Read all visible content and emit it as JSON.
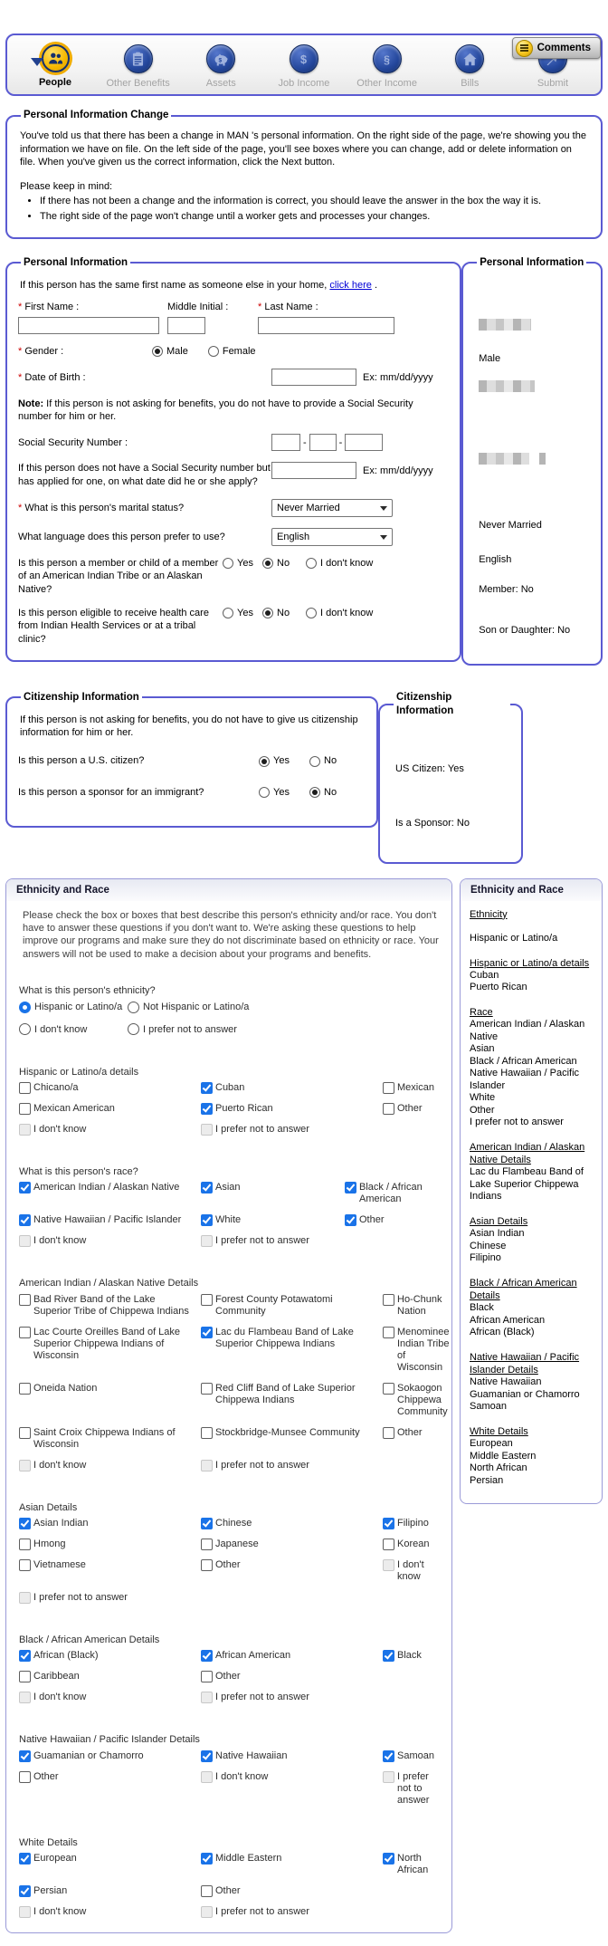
{
  "colors": {
    "fieldset_border": "#5a5ad2",
    "active_tab_yellow": "#f6b800",
    "nav_icon_blue": "#24479c",
    "checkbox_checked_blue": "#1a73e8",
    "link_blue": "#0000d6",
    "required_marker_red": "#cc0000"
  },
  "comments_button": {
    "label": "Comments"
  },
  "nav": {
    "items": [
      {
        "id": "people",
        "label": "People",
        "icon": "people-icon",
        "active": true
      },
      {
        "id": "other-benefits",
        "label": "Other Benefits",
        "icon": "clipboard-icon",
        "active": false
      },
      {
        "id": "assets",
        "label": "Assets",
        "icon": "piggy-bank-icon",
        "active": false
      },
      {
        "id": "job-income",
        "label": "Job Income",
        "icon": "dollar-coin-icon",
        "active": false
      },
      {
        "id": "other-income",
        "label": "Other Income",
        "icon": "section-coin-icon",
        "active": false
      },
      {
        "id": "bills",
        "label": "Bills",
        "icon": "house-icon",
        "active": false
      },
      {
        "id": "submit",
        "label": "Submit",
        "icon": "arrow-up-right-icon",
        "active": false
      }
    ]
  },
  "change_notice": {
    "title": "Personal Information Change",
    "intro": "You've told us that there has been a change in MAN 's personal information. On the right side of the page, we're showing you the information we have on file. On the left side of the page, you'll see boxes where you can change, add or delete information on file. When you've given us the correct information, click the Next button.",
    "keep_in_mind": "Please keep in mind:",
    "bullets": [
      "If there has not been a change and the information is correct, you should leave the answer in the box the way it is.",
      "The right side of the page won't change until a worker gets and processes your changes."
    ]
  },
  "personal_form": {
    "title": "Personal Information",
    "same_name": {
      "before": "If this person has the same first name as someone else in your home,",
      "link": "click here",
      "after": "."
    },
    "first_name": {
      "label": "First Name :",
      "required": true,
      "value": ""
    },
    "middle_initial": {
      "label": "Middle Initial :",
      "required": false,
      "value": ""
    },
    "last_name": {
      "label": "Last Name :",
      "required": true,
      "value": ""
    },
    "gender": {
      "label": "Gender :",
      "required": true,
      "options": [
        {
          "label": "Male",
          "selected": true
        },
        {
          "label": "Female",
          "selected": false
        }
      ]
    },
    "dob": {
      "label": "Date of Birth :",
      "required": true,
      "value": "",
      "hint": "Ex: mm/dd/yyyy"
    },
    "ssn_note_bold": "Note:",
    "ssn_note": "If this person is not asking for benefits, you do not have to provide a Social Security number for him or her.",
    "ssn": {
      "label": "Social Security Number :",
      "separator": "-",
      "values": [
        "",
        "",
        ""
      ]
    },
    "ssn_applied": {
      "label": "If this person does not have a Social Security number but has applied for one, on what date did he or she apply?",
      "value": "",
      "hint": "Ex: mm/dd/yyyy"
    },
    "marital": {
      "label": "What is this person's marital status?",
      "required": true,
      "value": "Never Married"
    },
    "language": {
      "label": "What language does this person prefer to use?",
      "value": "English"
    },
    "tribe_member": {
      "label": "Is this person a member or child of a member of an American Indian Tribe or an Alaskan Native?",
      "options": [
        {
          "label": "Yes",
          "selected": false
        },
        {
          "label": "No",
          "selected": true
        },
        {
          "label": "I don't know",
          "selected": false
        }
      ]
    },
    "indian_health": {
      "label": "Is this person eligible to receive health care from Indian Health Services or at a tribal clinic?",
      "options": [
        {
          "label": "Yes",
          "selected": false
        },
        {
          "label": "No",
          "selected": true
        },
        {
          "label": "I don't know",
          "selected": false
        }
      ]
    }
  },
  "personal_summary": {
    "title": "Personal Information",
    "items": [
      {
        "type": "redacted",
        "style": "r-name"
      },
      {
        "type": "text",
        "value": "Male"
      },
      {
        "type": "redacted",
        "style": "r-dob"
      },
      {
        "type": "redacted-ssn"
      },
      {
        "type": "text",
        "value": "Never Married"
      },
      {
        "type": "text",
        "value": "English"
      },
      {
        "type": "text",
        "value": "Member: No"
      },
      {
        "type": "text",
        "value": "Son or Daughter: No"
      }
    ]
  },
  "citizenship_form": {
    "title": "Citizenship Information",
    "intro": "If this person is not asking for benefits, you do not have to give us citizenship information for him or her.",
    "questions": [
      {
        "label": "Is this person a U.S. citizen?",
        "options": [
          {
            "label": "Yes",
            "selected": true
          },
          {
            "label": "No",
            "selected": false
          }
        ]
      },
      {
        "label": "Is this person a sponsor for an immigrant?",
        "options": [
          {
            "label": "Yes",
            "selected": false
          },
          {
            "label": "No",
            "selected": true
          }
        ]
      }
    ]
  },
  "citizenship_summary": {
    "title": "Citizenship Information",
    "items": [
      "US Citizen: Yes",
      "Is a Sponsor: No"
    ]
  },
  "ethnicity_form": {
    "title": "Ethnicity and Race",
    "intro": "Please check the box or boxes that best describe this person's ethnicity and/or race. You don't have to answer these questions if you don't want to. We're asking these questions to help improve our programs and make sure they do not discriminate based on ethnicity or race. Your answers will not be used to make a decision about your programs and benefits.",
    "ethnicity_question": {
      "label": "What is this person's ethnicity?",
      "options": [
        {
          "label": "Hispanic or Latino/a",
          "selected": true
        },
        {
          "label": "Not Hispanic or Latino/a",
          "selected": false
        },
        {
          "label": "I don't know",
          "selected": false
        },
        {
          "label": "I prefer not to answer",
          "selected": false
        }
      ]
    },
    "groups": [
      {
        "heading": "Hispanic or Latino/a details",
        "grid": "a",
        "items": [
          {
            "label": "Chicano/a",
            "checked": false
          },
          {
            "label": "Cuban",
            "checked": true
          },
          {
            "label": "Mexican",
            "checked": false
          },
          {
            "label": "Mexican American",
            "checked": false
          },
          {
            "label": "Puerto Rican",
            "checked": true
          },
          {
            "label": "Other",
            "checked": false
          },
          {
            "label": "I don't know",
            "checked": false,
            "disabled": true
          },
          {
            "label": "I prefer not to answer",
            "checked": false,
            "disabled": true
          }
        ]
      },
      {
        "heading": "What is this person's race?",
        "grid": "b",
        "items": [
          {
            "label": "American Indian / Alaskan Native",
            "checked": true
          },
          {
            "label": "Asian",
            "checked": true
          },
          {
            "label": "Black / African American",
            "checked": true
          },
          {
            "label": "Native Hawaiian / Pacific Islander",
            "checked": true
          },
          {
            "label": "White",
            "checked": true
          },
          {
            "label": "Other",
            "checked": true
          },
          {
            "label": "I don't know",
            "checked": false,
            "disabled": true
          },
          {
            "label": "I prefer not to answer",
            "checked": false,
            "disabled": true
          }
        ]
      },
      {
        "heading": "American Indian / Alaskan Native Details",
        "grid": "a",
        "items": [
          {
            "label": "Bad River Band of the Lake Superior Tribe of Chippewa Indians",
            "checked": false
          },
          {
            "label": "Forest County Potawatomi Community",
            "checked": false
          },
          {
            "label": "Ho-Chunk Nation",
            "checked": false
          },
          {
            "label": "Lac Courte Oreilles Band of Lake Superior Chippewa Indians of Wisconsin",
            "checked": false
          },
          {
            "label": "Lac du Flambeau Band of Lake Superior Chippewa Indians",
            "checked": true
          },
          {
            "label": "Menominee Indian Tribe of Wisconsin",
            "checked": false
          },
          {
            "label": "Oneida Nation",
            "checked": false
          },
          {
            "label": "Red Cliff Band of Lake Superior Chippewa Indians",
            "checked": false
          },
          {
            "label": "Sokaogon Chippewa Community",
            "checked": false
          },
          {
            "label": "Saint Croix Chippewa Indians of Wisconsin",
            "checked": false
          },
          {
            "label": "Stockbridge-Munsee Community",
            "checked": false
          },
          {
            "label": "Other",
            "checked": false
          },
          {
            "label": "I don't know",
            "checked": false,
            "disabled": true
          },
          {
            "label": "I prefer not to answer",
            "checked": false,
            "disabled": true
          }
        ]
      },
      {
        "heading": "Asian Details",
        "grid": "a",
        "items": [
          {
            "label": "Asian Indian",
            "checked": true
          },
          {
            "label": "Chinese",
            "checked": true
          },
          {
            "label": "Filipino",
            "checked": true
          },
          {
            "label": "Hmong",
            "checked": false
          },
          {
            "label": "Japanese",
            "checked": false
          },
          {
            "label": "Korean",
            "checked": false
          },
          {
            "label": "Vietnamese",
            "checked": false
          },
          {
            "label": "Other",
            "checked": false
          },
          {
            "label": "I don't know",
            "checked": false,
            "disabled": true
          },
          {
            "label": "I prefer not to answer",
            "checked": false,
            "disabled": true
          }
        ]
      },
      {
        "heading": "Black / African American Details",
        "grid": "a",
        "items": [
          {
            "label": "African (Black)",
            "checked": true
          },
          {
            "label": "African American",
            "checked": true
          },
          {
            "label": "Black",
            "checked": true
          },
          {
            "label": "Caribbean",
            "checked": false
          },
          {
            "label": "Other",
            "checked": false
          },
          {
            "label": "",
            "spacer": true
          },
          {
            "label": "I don't know",
            "checked": false,
            "disabled": true
          },
          {
            "label": "I prefer not to answer",
            "checked": false,
            "disabled": true
          }
        ]
      },
      {
        "heading": "Native Hawaiian / Pacific Islander Details",
        "grid": "a",
        "items": [
          {
            "label": "Guamanian or Chamorro",
            "checked": true
          },
          {
            "label": "Native Hawaiian",
            "checked": true
          },
          {
            "label": "Samoan",
            "checked": true
          },
          {
            "label": "Other",
            "checked": false
          },
          {
            "label": "I don't know",
            "checked": false,
            "disabled": true
          },
          {
            "label": "I prefer not to answer",
            "checked": false,
            "disabled": true
          }
        ]
      },
      {
        "heading": "White Details",
        "grid": "a",
        "items": [
          {
            "label": "European",
            "checked": true
          },
          {
            "label": "Middle Eastern",
            "checked": true
          },
          {
            "label": "North African",
            "checked": true
          },
          {
            "label": "Persian",
            "checked": true
          },
          {
            "label": "Other",
            "checked": false
          },
          {
            "label": "",
            "spacer": true
          },
          {
            "label": "I don't know",
            "checked": false,
            "disabled": true
          },
          {
            "label": "I prefer not to answer",
            "checked": false,
            "disabled": true
          }
        ]
      }
    ]
  },
  "ethnicity_summary": {
    "title": "Ethnicity and Race",
    "groups": [
      {
        "heading": "Ethnicity",
        "values": [
          "Hispanic or Latino/a"
        ]
      },
      {
        "heading": "Hispanic or Latino/a details",
        "values": [
          "Cuban",
          "Puerto Rican"
        ]
      },
      {
        "heading": "Race",
        "values": [
          "American Indian / Alaskan Native",
          "Asian",
          "Black / African American",
          "Native Hawaiian / Pacific Islander",
          "White",
          "Other",
          "I prefer not to answer"
        ]
      },
      {
        "heading": "American Indian / Alaskan Native Details",
        "values": [
          "Lac du Flambeau Band of Lake Superior Chippewa Indians"
        ]
      },
      {
        "heading": "Asian Details",
        "values": [
          "Asian Indian",
          "Chinese",
          "Filipino"
        ]
      },
      {
        "heading": "Black / African American Details",
        "values": [
          "Black",
          "African American",
          "African (Black)"
        ]
      },
      {
        "heading": "Native Hawaiian / Pacific Islander Details",
        "values": [
          "Native Hawaiian",
          "Guamanian or Chamorro",
          "Samoan"
        ]
      },
      {
        "heading": "White Details",
        "values": [
          "European",
          "Middle Eastern",
          "North African",
          "Persian"
        ]
      }
    ]
  }
}
